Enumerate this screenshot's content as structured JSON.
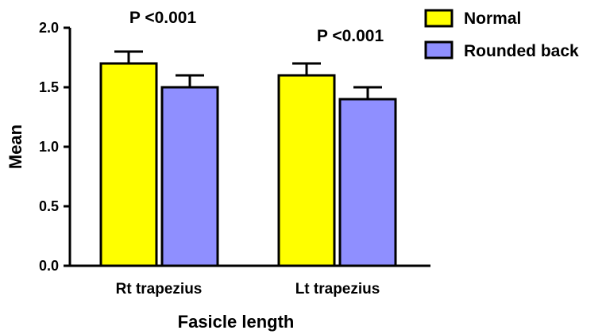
{
  "chart_data": {
    "type": "bar",
    "title": "",
    "xlabel": "Fasicle length",
    "ylabel": "Mean",
    "categories": [
      "Rt trapezius",
      "Lt trapezius"
    ],
    "ylim": [
      0.0,
      2.0
    ],
    "yticks": [
      "0.0",
      "0.5",
      "1.0",
      "1.5",
      "2.0"
    ],
    "series": [
      {
        "name": "Normal",
        "color": "#ffff00",
        "values": [
          1.7,
          1.6
        ],
        "errors": [
          0.1,
          0.1
        ]
      },
      {
        "name": "Rounded back",
        "color": "#8f8fff",
        "values": [
          1.5,
          1.4
        ],
        "errors": [
          0.1,
          0.1
        ]
      }
    ],
    "annotations": [
      "P <0.001",
      "P <0.001"
    ],
    "legend_position": "top-right",
    "grid": false
  }
}
